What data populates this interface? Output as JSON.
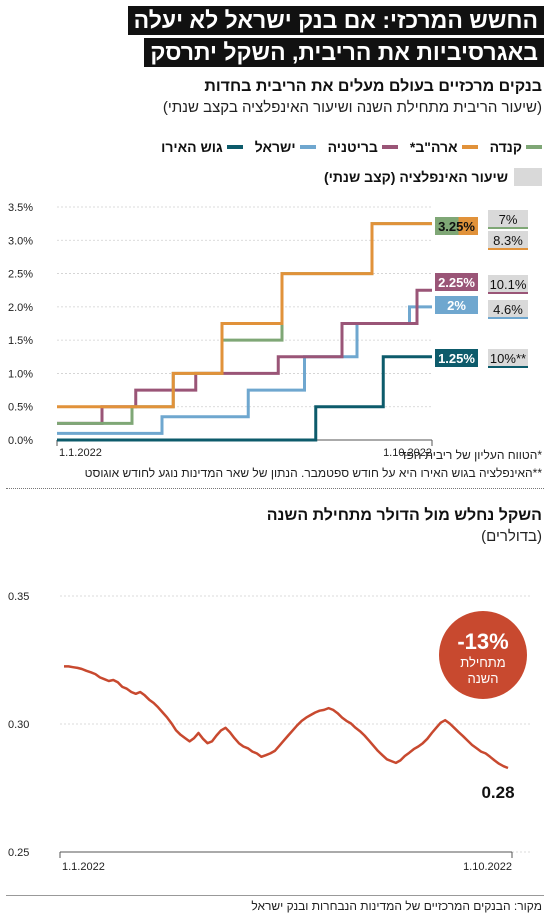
{
  "headline": {
    "line1": "החשש המרכזי: אם בנק ישראל לא יעלה",
    "line2": "באגרסיביות את הריבית, השקל יתרסק"
  },
  "rates_section": {
    "title": "בנקים מרכזיים בעולם מעלים את הריבית בחדות",
    "subtitle": "(שיעור הריבית מתחילת השנה ושיעור האינפלציה בקצב שנתי)",
    "inflation_legend": "שיעור האינפלציה (קצב שנתי)",
    "footnote1": "*הטווח העליון של ריבית הפד",
    "footnote2": "**האינפלציה בגוש האירו היא על חודש ספטמבר. הנתון של שאר המדינות נוגע לחודש אוגוסט"
  },
  "fx_section": {
    "title": "השקל נחלש מול הדולר מתחילת השנה",
    "subtitle": "(בדולרים)",
    "badge_value": "-13%",
    "badge_line1": "מתחילת",
    "badge_line2": "השנה"
  },
  "source": "מקור: הבנקים המרכזיים של המדינות הנבחרות ובנק ישראל",
  "colors": {
    "canada": "#7fa776",
    "us": "#e1923a",
    "uk": "#9a5577",
    "britain": "#6fa7cf",
    "israel": "#0d5b6b",
    "euro": "#0d5b6b",
    "fx_line": "#c8492f",
    "badge": "#c8492f",
    "inflation_box": "#d9d9d9"
  },
  "chart_data": [
    {
      "type": "line",
      "step": true,
      "x_start_label": "1.1.2022",
      "x_end_label": "1.10.2022",
      "ylim": [
        0,
        3.5
      ],
      "ytick_labels": [
        "0.0%",
        "0.5%",
        "1.0%",
        "1.5%",
        "2.0%",
        "2.5%",
        "3.0%",
        "3.5%"
      ],
      "ytick_values": [
        0,
        0.5,
        1.0,
        1.5,
        2.0,
        2.5,
        3.0,
        3.5
      ],
      "grid": true,
      "legend": [
        {
          "key": "canada",
          "label": "קנדה"
        },
        {
          "key": "us",
          "label": "ארה\"ב*"
        },
        {
          "key": "uk",
          "label": "בריטניה"
        },
        {
          "key": "israel",
          "label": "ישראל"
        },
        {
          "key": "euro",
          "label": "גוש האירו"
        }
      ],
      "series": [
        {
          "key": "canada",
          "name": "קנדה",
          "x": [
            0,
            0.12,
            0.2,
            0.31,
            0.44,
            0.6,
            0.84,
            1.0
          ],
          "y": [
            0.25,
            0.25,
            0.5,
            1.0,
            1.5,
            2.5,
            3.25,
            3.25
          ],
          "end_label": "3.25%",
          "inflation": "7%"
        },
        {
          "key": "us",
          "name": "ארה\"ב*",
          "x": [
            0,
            0.18,
            0.31,
            0.44,
            0.6,
            0.84,
            1.0
          ],
          "y": [
            0.5,
            0.5,
            1.0,
            1.75,
            2.5,
            3.25,
            3.25
          ],
          "end_label": "3.25%",
          "inflation": "8.3%"
        },
        {
          "key": "uk",
          "name": "בריטניה",
          "x": [
            0,
            0.12,
            0.21,
            0.37,
            0.59,
            0.76,
            0.96,
            1.0
          ],
          "y": [
            0.25,
            0.5,
            0.75,
            1.0,
            1.25,
            1.75,
            2.25,
            2.25
          ],
          "end_label": "2.25%",
          "inflation": "10.1%"
        },
        {
          "key": "britain",
          "name": "ישראל",
          "x": [
            0,
            0.28,
            0.51,
            0.66,
            0.8,
            0.94,
            1.0
          ],
          "y": [
            0.1,
            0.35,
            0.75,
            1.25,
            1.75,
            2.0,
            2.0
          ],
          "end_label": "2%",
          "inflation": "4.6%"
        },
        {
          "key": "euro",
          "name": "גוש האירו",
          "x": [
            0,
            0.69,
            0.87,
            1.0
          ],
          "y": [
            0.0,
            0.5,
            1.25,
            1.25
          ],
          "end_label": "1.25%",
          "inflation": "10%**"
        }
      ]
    },
    {
      "type": "line",
      "x_start_label": "1.1.2022",
      "x_end_label": "1.10.2022",
      "ylim": [
        0.25,
        0.35
      ],
      "ytick_labels": [
        "0.25",
        "0.30",
        "0.35"
      ],
      "ytick_values": [
        0.25,
        0.3,
        0.35
      ],
      "grid": true,
      "end_label": "0.28",
      "series": [
        {
          "name": "",
          "values": [
            0.3225,
            0.3225,
            0.3222,
            0.3219,
            0.3215,
            0.3208,
            0.3202,
            0.3195,
            0.3182,
            0.3175,
            0.3168,
            0.3172,
            0.3163,
            0.3145,
            0.3138,
            0.3125,
            0.3118,
            0.3125,
            0.3112,
            0.3095,
            0.3082,
            0.3065,
            0.3045,
            0.3025,
            0.3002,
            0.2975,
            0.2958,
            0.2945,
            0.2932,
            0.2945,
            0.2965,
            0.2942,
            0.2925,
            0.2932,
            0.2955,
            0.2975,
            0.2985,
            0.2968,
            0.2945,
            0.2925,
            0.2912,
            0.2905,
            0.2892,
            0.2885,
            0.2872,
            0.2878,
            0.2885,
            0.2895,
            0.2915,
            0.2935,
            0.2955,
            0.2975,
            0.2995,
            0.3012,
            0.3025,
            0.3035,
            0.3045,
            0.3052,
            0.3055,
            0.3062,
            0.3055,
            0.3042,
            0.3025,
            0.3012,
            0.3002,
            0.2985,
            0.2972,
            0.2955,
            0.2935,
            0.2915,
            0.2895,
            0.2878,
            0.2862,
            0.2855,
            0.2848,
            0.2858,
            0.2875,
            0.2888,
            0.2902,
            0.2912,
            0.2925,
            0.2942,
            0.2965,
            0.2985,
            0.3005,
            0.3015,
            0.3002,
            0.2985,
            0.2968,
            0.2952,
            0.2935,
            0.2918,
            0.2905,
            0.2892,
            0.2885,
            0.2872,
            0.2858,
            0.2845,
            0.2835,
            0.2828
          ]
        }
      ]
    }
  ]
}
